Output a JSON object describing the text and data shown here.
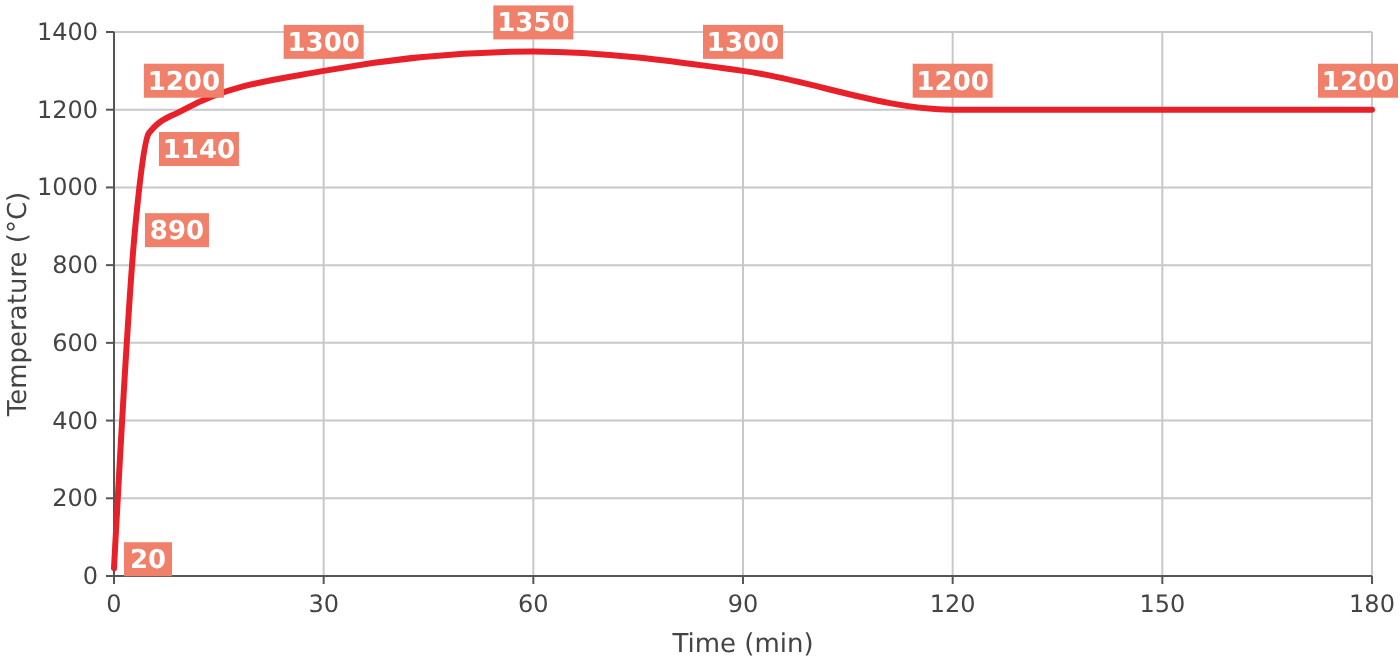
{
  "chart_data": {
    "type": "line",
    "xlabel": "Time (min)",
    "ylabel": "Temperature (°C)",
    "x": [
      0,
      3,
      5,
      10,
      30,
      60,
      90,
      120,
      180
    ],
    "series": [
      {
        "color": "#e8202a",
        "values": [
          20,
          890,
          1140,
          1200,
          1300,
          1350,
          1300,
          1200,
          1200
        ]
      }
    ],
    "xlim": [
      0,
      180
    ],
    "xticks": [
      0,
      30,
      60,
      90,
      120,
      150,
      180
    ],
    "ylim": [
      0,
      1400
    ],
    "yticks": [
      0,
      200,
      400,
      600,
      800,
      1000,
      1200,
      1400
    ],
    "grid": true,
    "data_labels": true,
    "marker": "none",
    "line_style": "solid"
  }
}
